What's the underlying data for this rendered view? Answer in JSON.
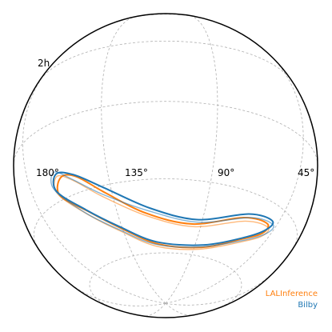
{
  "chart_data": {
    "type": "skymap",
    "title": "",
    "projection": "astro globe (orthographic)",
    "grid": true,
    "legend_position": "bottom-right",
    "ra_tick_labels": [
      "180°",
      "135°",
      "90°",
      "45°"
    ],
    "dec_tick_labels": [
      "2h"
    ],
    "series": [
      {
        "name": "LALInference",
        "color": "#ff7f0e",
        "contours": [
          {
            "credible_level": 90,
            "points_radec": [
              [
                158,
                -22
              ],
              [
                150,
                -24
              ],
              [
                138,
                -33
              ],
              [
                120,
                -43
              ],
              [
                95,
                -47
              ],
              [
                68,
                -40
              ],
              [
                52,
                -38
              ],
              [
                51,
                -42
              ],
              [
                62,
                -48
              ],
              [
                85,
                -56
              ],
              [
                115,
                -56
              ],
              [
                135,
                -48
              ],
              [
                150,
                -38
              ],
              [
                162,
                -28
              ],
              [
                158,
                -22
              ]
            ]
          },
          {
            "credible_level": 90,
            "points_radec": [
              [
                160,
                -21
              ],
              [
                152,
                -25
              ],
              [
                140,
                -34
              ],
              [
                120,
                -44
              ],
              [
                94,
                -48
              ],
              [
                66,
                -41
              ],
              [
                50,
                -39
              ],
              [
                50,
                -43
              ],
              [
                61,
                -49
              ],
              [
                86,
                -57
              ],
              [
                116,
                -57
              ],
              [
                136,
                -49
              ],
              [
                151,
                -39
              ],
              [
                163,
                -27
              ],
              [
                160,
                -21
              ]
            ]
          }
        ]
      },
      {
        "name": "Bilby",
        "color": "#1f77b4",
        "contours": [
          {
            "credible_level": 90,
            "points_radec": [
              [
                160,
                -20
              ],
              [
                151,
                -23
              ],
              [
                138,
                -31
              ],
              [
                118,
                -41
              ],
              [
                93,
                -45
              ],
              [
                66,
                -38
              ],
              [
                50,
                -36
              ],
              [
                50,
                -40
              ],
              [
                61,
                -47
              ],
              [
                85,
                -55
              ],
              [
                116,
                -55
              ],
              [
                136,
                -47
              ],
              [
                151,
                -37
              ],
              [
                163,
                -26
              ],
              [
                160,
                -20
              ]
            ]
          },
          {
            "credible_level": 90,
            "points_radec": [
              [
                161,
                -19
              ],
              [
                153,
                -24
              ],
              [
                140,
                -33
              ],
              [
                119,
                -42
              ],
              [
                92,
                -46
              ],
              [
                64,
                -39
              ],
              [
                48,
                -37
              ],
              [
                48,
                -41
              ],
              [
                60,
                -48
              ],
              [
                86,
                -56
              ],
              [
                117,
                -56
              ],
              [
                137,
                -48
              ],
              [
                152,
                -38
              ],
              [
                164,
                -25
              ],
              [
                161,
                -19
              ]
            ]
          }
        ]
      }
    ]
  },
  "legend": {
    "items": [
      {
        "label": "LALInference",
        "color": "#ff7f0e"
      },
      {
        "label": "Bilby",
        "color": "#1f77b4"
      }
    ]
  }
}
